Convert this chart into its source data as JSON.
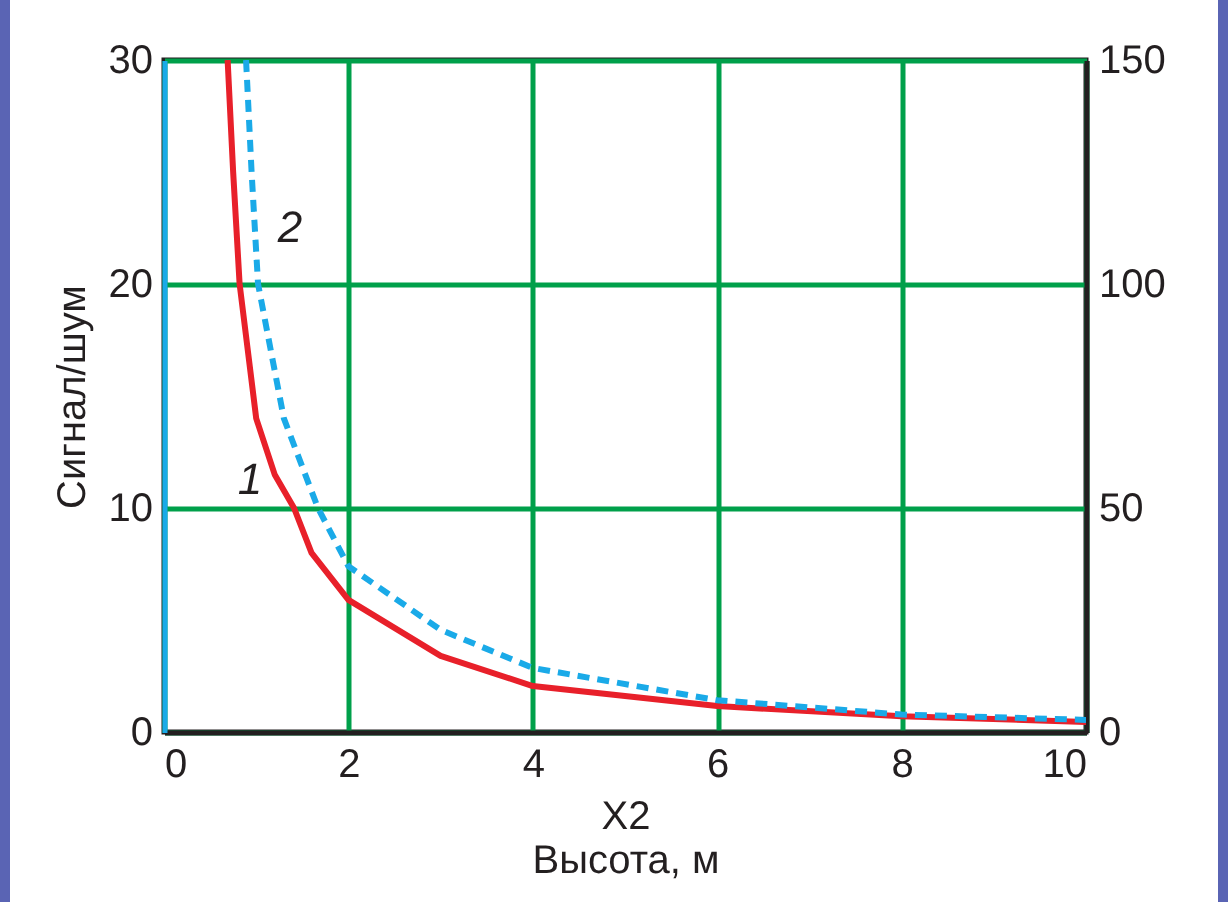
{
  "chart_data": {
    "type": "line",
    "xlabel": "X2\nВысота, м",
    "ylabel": "Сигнал/шум",
    "xlim": [
      0,
      10
    ],
    "xticks": [
      0,
      2,
      4,
      6,
      8,
      10
    ],
    "ylim": [
      0,
      30
    ],
    "yticks": [
      0,
      10,
      20,
      30
    ],
    "y2lim": [
      0,
      150
    ],
    "y2ticks": [
      0,
      50,
      100,
      150
    ],
    "grid": true,
    "series": [
      {
        "name": "1",
        "color": "#e8202a",
        "line_style": "solid",
        "x": [
          0.69,
          0.75,
          0.82,
          1,
          1.2,
          1.41,
          1.6,
          2,
          3,
          4,
          6,
          8,
          10
        ],
        "values": [
          30,
          25,
          20,
          14,
          11.5,
          10,
          8,
          5.9,
          3.4,
          2.05,
          1.16,
          0.7,
          0.45
        ]
      },
      {
        "name": "2",
        "color": "#1aaae8",
        "line_style": "dashed",
        "axis": "y2",
        "x": [
          0.89,
          0.95,
          1.02,
          1.3,
          1.67,
          2,
          3,
          4,
          6,
          8,
          10
        ],
        "values": [
          150,
          125,
          100,
          70,
          50,
          37,
          22.8,
          14.3,
          7.1,
          3.9,
          2.7
        ]
      }
    ]
  }
}
